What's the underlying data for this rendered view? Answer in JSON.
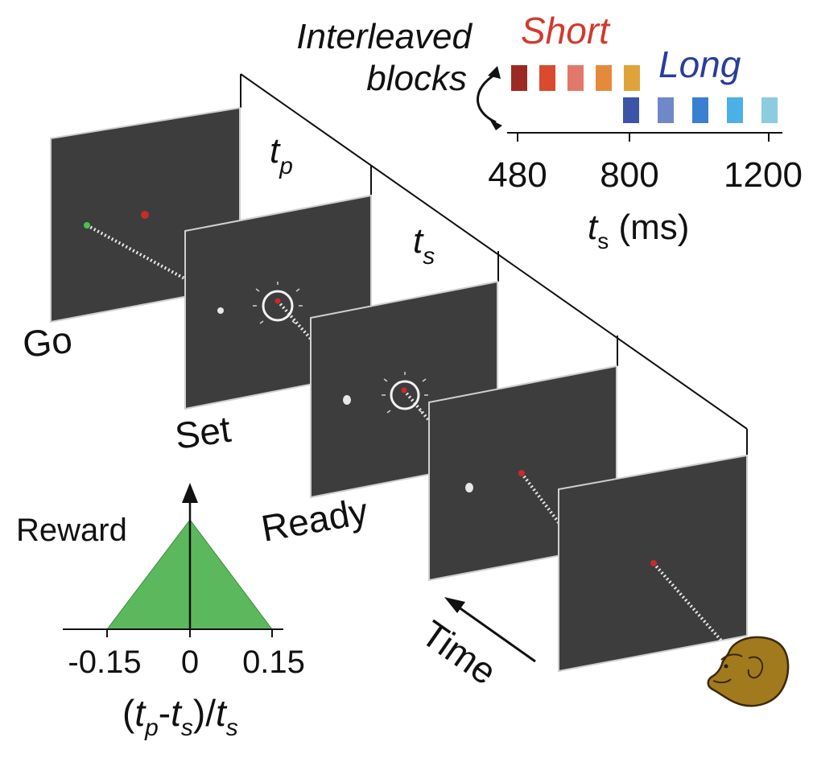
{
  "blocks": {
    "title_line1": "Interleaved",
    "title_line2": "blocks",
    "short_label": "Short",
    "long_label": "Long",
    "short_colors": [
      "#9b2a22",
      "#d94a2e",
      "#e2786a",
      "#e58a3a",
      "#e0a33a"
    ],
    "long_colors": [
      "#3a55a8",
      "#6f88c8",
      "#3a7fd0",
      "#4ab0e6",
      "#8ccbe0"
    ],
    "axis_ticks": [
      "480",
      "800",
      "1200"
    ],
    "axis_label_var": "t",
    "axis_label_sub": "s",
    "axis_label_unit": " (ms)"
  },
  "sequence": {
    "tp_var": "t",
    "tp_sub": "p",
    "ts_var": "t",
    "ts_sub": "s",
    "labels": {
      "go": "Go",
      "set": "Set",
      "ready": "Ready"
    },
    "time_label": "Time",
    "panel_color": "#3d3d3d"
  },
  "reward": {
    "ylabel": "Reward",
    "ticks": [
      "-0.15",
      "0",
      "0.15"
    ],
    "fill_color": "#5cb85c",
    "xlabel": {
      "open": "(",
      "tp_var": "t",
      "tp_sub": "p",
      "minus": "-",
      "ts_var": "t",
      "ts_sub": "s",
      "close": ")/",
      "ts2_var": "t",
      "ts2_sub": "s"
    }
  }
}
